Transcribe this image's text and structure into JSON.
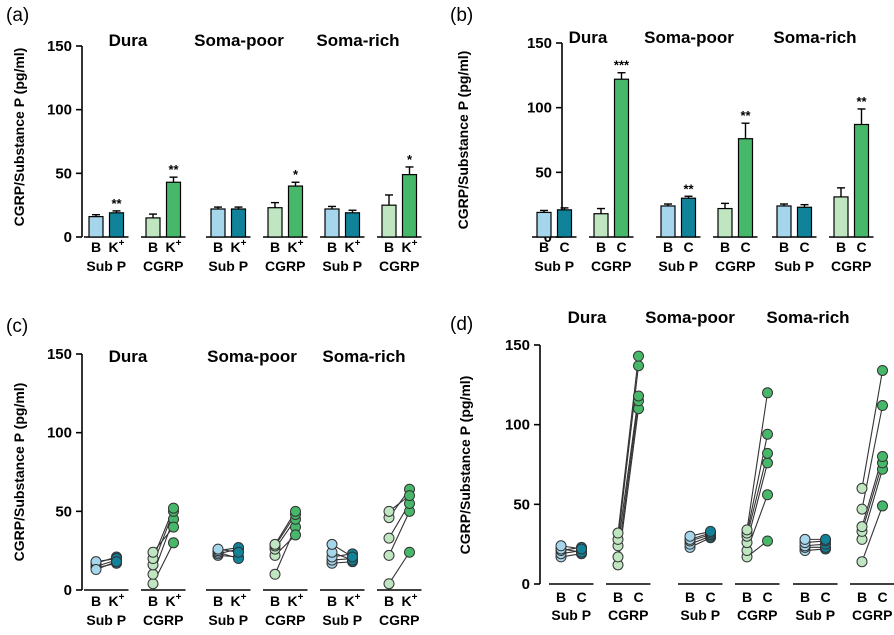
{
  "colors": {
    "subp_baseline": "#a6d6ec",
    "subp_stim": "#10829a",
    "cgrp_baseline": "#bfe5c1",
    "cgrp_stim": "#47b86a",
    "line": "#333333"
  },
  "chart_data": [
    {
      "panel": "(a)",
      "type": "bar",
      "ylabel": "CGRP/Substance P (pg/ml)",
      "ylim": [
        0,
        150
      ],
      "yticks": [
        0,
        50,
        100,
        150
      ],
      "conditions": [
        "B",
        "K",
        "B",
        "K"
      ],
      "superscripts": [
        "",
        "+",
        "",
        "+"
      ],
      "group_labels": [
        "Sub P",
        "CGRP"
      ],
      "regions": [
        {
          "name": "Dura",
          "values": [
            16,
            19,
            15,
            43
          ],
          "errors": [
            1.5,
            1.5,
            3,
            4
          ],
          "sig": [
            "",
            "**",
            "",
            "**"
          ]
        },
        {
          "name": "Soma-poor",
          "values": [
            22,
            22,
            23,
            40
          ],
          "errors": [
            1.5,
            1.5,
            4,
            3
          ],
          "sig": [
            "",
            "",
            "",
            "*"
          ]
        },
        {
          "name": "Soma-rich",
          "values": [
            22,
            19,
            25,
            49
          ],
          "errors": [
            2,
            2,
            8,
            6
          ],
          "sig": [
            "",
            "",
            "",
            "*"
          ]
        }
      ]
    },
    {
      "panel": "(b)",
      "type": "bar",
      "ylabel": "CGRP/Substance P (pg/ml)",
      "ylim": [
        0,
        150
      ],
      "yticks": [
        0,
        50,
        100,
        150
      ],
      "conditions": [
        "B",
        "C",
        "B",
        "C"
      ],
      "superscripts": [
        "",
        "",
        "",
        ""
      ],
      "group_labels": [
        "Sub P",
        "CGRP"
      ],
      "regions": [
        {
          "name": "Dura",
          "values": [
            19,
            21,
            18,
            122
          ],
          "errors": [
            1.5,
            1.5,
            4,
            5
          ],
          "sig": [
            "",
            "",
            "",
            "***"
          ]
        },
        {
          "name": "Soma-poor",
          "values": [
            24,
            30,
            22,
            76
          ],
          "errors": [
            1.5,
            1.5,
            4,
            12
          ],
          "sig": [
            "",
            "**",
            "",
            "**"
          ]
        },
        {
          "name": "Soma-rich",
          "values": [
            24,
            23,
            31,
            87
          ],
          "errors": [
            1.5,
            2,
            7,
            12
          ],
          "sig": [
            "",
            "",
            "",
            "**"
          ]
        }
      ]
    },
    {
      "panel": "(c)",
      "type": "scatter",
      "ylabel": "CGRP/Substance P (pg/ml)",
      "ylim": [
        0,
        150
      ],
      "yticks": [
        0,
        50,
        100,
        150
      ],
      "conditions": [
        "B",
        "K",
        "B",
        "K"
      ],
      "superscripts": [
        "",
        "+",
        "",
        "+"
      ],
      "group_labels": [
        "Sub P",
        "CGRP"
      ],
      "regions": [
        {
          "name": "Dura",
          "subp": [
            [
              14,
              17
            ],
            [
              15,
              19
            ],
            [
              17,
              21
            ],
            [
              18,
              20
            ],
            [
              13,
              18
            ]
          ],
          "cgrp": [
            [
              4,
              30
            ],
            [
              10,
              45
            ],
            [
              16,
              50
            ],
            [
              20,
              52
            ],
            [
              24,
              40
            ]
          ]
        },
        {
          "name": "Soma-poor",
          "subp": [
            [
              22,
              21
            ],
            [
              23,
              26
            ],
            [
              24,
              20
            ],
            [
              25,
              27
            ],
            [
              26,
              24
            ]
          ],
          "cgrp": [
            [
              10,
              40
            ],
            [
              22,
              35
            ],
            [
              26,
              45
            ],
            [
              28,
              48
            ],
            [
              29,
              50
            ]
          ]
        },
        {
          "name": "Soma-rich",
          "subp": [
            [
              17,
              18
            ],
            [
              19,
              20
            ],
            [
              21,
              23
            ],
            [
              24,
              19
            ],
            [
              29,
              21
            ]
          ],
          "cgrp": [
            [
              4,
              24
            ],
            [
              22,
              50
            ],
            [
              33,
              55
            ],
            [
              46,
              64
            ],
            [
              50,
              60
            ]
          ]
        }
      ]
    },
    {
      "panel": "(d)",
      "type": "scatter",
      "ylabel": "CGRP/Substance P (pg/ml)",
      "ylim": [
        0,
        150
      ],
      "yticks": [
        0,
        50,
        100,
        150
      ],
      "conditions": [
        "B",
        "C",
        "B",
        "C"
      ],
      "superscripts": [
        "",
        "",
        "",
        ""
      ],
      "group_labels": [
        "Sub P",
        "CGRP"
      ],
      "regions": [
        {
          "name": "Dura",
          "subp": [
            [
              17,
              19
            ],
            [
              19,
              21
            ],
            [
              21,
              23
            ],
            [
              22,
              20
            ],
            [
              24,
              22
            ]
          ],
          "cgrp": [
            [
              12,
              110
            ],
            [
              17,
              115
            ],
            [
              24,
              118
            ],
            [
              28,
              137
            ],
            [
              32,
              143
            ]
          ]
        },
        {
          "name": "Soma-poor",
          "subp": [
            [
              23,
              29
            ],
            [
              25,
              30
            ],
            [
              27,
              31
            ],
            [
              28,
              32
            ],
            [
              30,
              33
            ]
          ],
          "cgrp": [
            [
              17,
              27
            ],
            [
              21,
              56
            ],
            [
              26,
              76
            ],
            [
              30,
              82
            ],
            [
              32,
              94
            ],
            [
              34,
              120
            ]
          ]
        },
        {
          "name": "Soma-rich",
          "subp": [
            [
              21,
              22
            ],
            [
              23,
              23
            ],
            [
              24,
              25
            ],
            [
              26,
              27
            ],
            [
              28,
              28
            ]
          ],
          "cgrp": [
            [
              14,
              49
            ],
            [
              28,
              72
            ],
            [
              33,
              76
            ],
            [
              36,
              80
            ],
            [
              47,
              112
            ],
            [
              60,
              134
            ]
          ]
        }
      ]
    }
  ]
}
